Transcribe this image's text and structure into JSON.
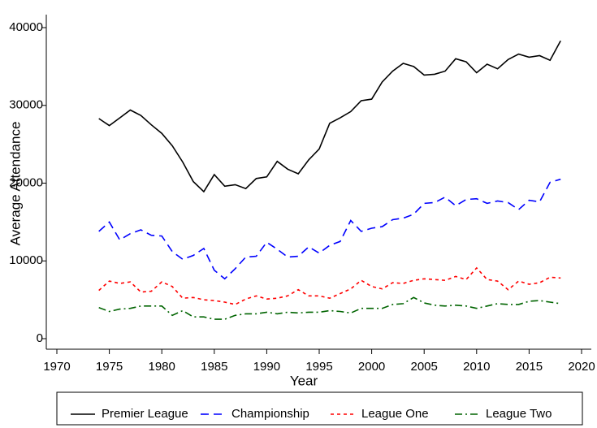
{
  "chart_data": {
    "type": "line",
    "x_label": "Year",
    "y_label": "Average Attendance",
    "x": [
      1974,
      1975,
      1976,
      1977,
      1978,
      1979,
      1980,
      1981,
      1982,
      1983,
      1984,
      1985,
      1986,
      1987,
      1988,
      1989,
      1990,
      1991,
      1992,
      1993,
      1994,
      1995,
      1996,
      1997,
      1998,
      1999,
      2000,
      2001,
      2002,
      2003,
      2004,
      2005,
      2006,
      2007,
      2008,
      2009,
      2010,
      2011,
      2012,
      2013,
      2014,
      2015,
      2016,
      2017,
      2018
    ],
    "xlim": [
      1970,
      2020
    ],
    "xticks": [
      1970,
      1975,
      1980,
      1985,
      1990,
      1995,
      2000,
      2005,
      2010,
      2015,
      2020
    ],
    "ylim": [
      0,
      40000
    ],
    "yticks": [
      0,
      10000,
      20000,
      30000,
      40000
    ],
    "grid": false,
    "legend": "bottom",
    "series": [
      {
        "name": "Premier League",
        "color": "#000000",
        "dash": "solid",
        "values": [
          28300,
          27400,
          28400,
          29400,
          28700,
          27500,
          26400,
          24800,
          22700,
          20200,
          18900,
          21100,
          19600,
          19800,
          19300,
          20600,
          20800,
          22800,
          21800,
          21200,
          23000,
          24400,
          27700,
          28400,
          29200,
          30600,
          30800,
          33000,
          34400,
          35400,
          35000,
          33900,
          34000,
          34400,
          36000,
          35600,
          34200,
          35300,
          34700,
          35900,
          36600,
          36200,
          36400,
          35800,
          38300
        ]
      },
      {
        "name": "Championship",
        "color": "#0000ff",
        "dash": "long",
        "values": [
          13800,
          15000,
          12700,
          13500,
          14000,
          13300,
          13200,
          11200,
          10200,
          10700,
          11600,
          8800,
          7700,
          9000,
          10500,
          10600,
          12400,
          11500,
          10500,
          10600,
          11800,
          11000,
          12000,
          12500,
          15200,
          13800,
          14200,
          14400,
          15300,
          15500,
          16000,
          17400,
          17500,
          18200,
          17100,
          17900,
          18000,
          17400,
          17700,
          17500,
          16600,
          17800,
          17600,
          20100,
          20500
        ]
      },
      {
        "name": "League One",
        "color": "#ff0000",
        "dash": "short",
        "values": [
          6200,
          7400,
          7100,
          7300,
          6000,
          6100,
          7300,
          6700,
          5200,
          5300,
          5000,
          4900,
          4700,
          4400,
          5100,
          5500,
          5100,
          5200,
          5500,
          6300,
          5500,
          5500,
          5200,
          5800,
          6400,
          7500,
          6700,
          6400,
          7200,
          7100,
          7500,
          7700,
          7600,
          7500,
          8000,
          7600,
          9100,
          7600,
          7400,
          6300,
          7400,
          7000,
          7200,
          7900,
          7800
        ]
      },
      {
        "name": "League Two",
        "color": "#006400",
        "dash": "dashdot",
        "values": [
          4000,
          3500,
          3800,
          3900,
          4200,
          4200,
          4200,
          3000,
          3600,
          2800,
          2800,
          2500,
          2500,
          3000,
          3200,
          3200,
          3400,
          3200,
          3400,
          3300,
          3400,
          3400,
          3600,
          3500,
          3300,
          3900,
          3900,
          3900,
          4400,
          4500,
          5300,
          4600,
          4300,
          4200,
          4300,
          4200,
          3900,
          4200,
          4500,
          4400,
          4400,
          4800,
          4900,
          4700,
          4500
        ]
      }
    ]
  }
}
